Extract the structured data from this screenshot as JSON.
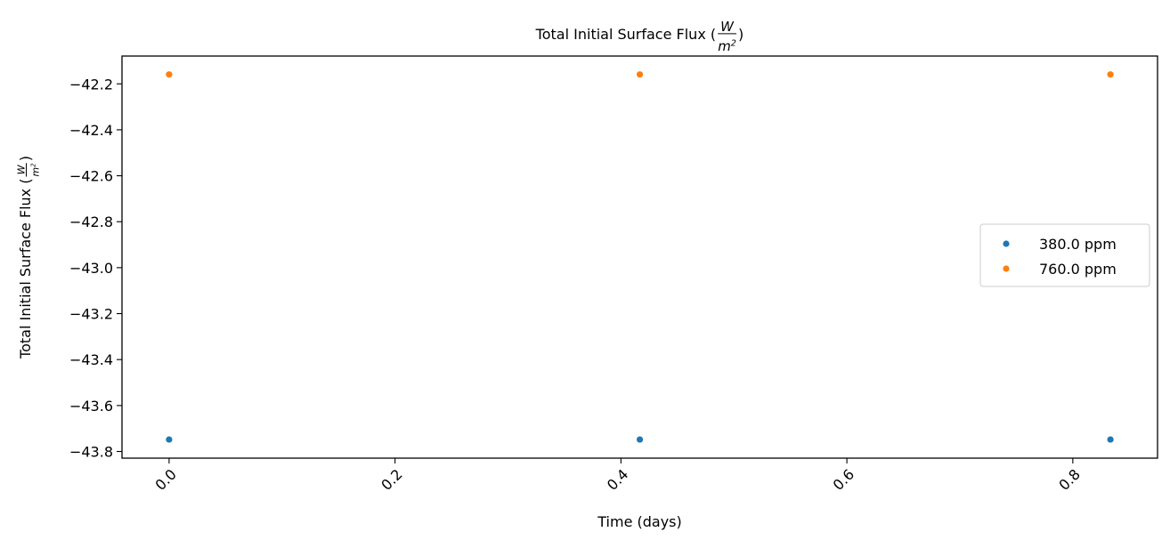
{
  "chart_data": {
    "type": "scatter",
    "title": "Total Initial Surface Flux (W/m²)",
    "title_parts": {
      "prefix": "Total Initial Surface Flux (",
      "frac_num": "W",
      "frac_den": "m",
      "frac_den_exp": "2",
      "suffix": ")"
    },
    "xlabel": "Time (days)",
    "ylabel": "Total Initial Surface Flux (W/m²)",
    "ylabel_parts": {
      "prefix": "Total Initial Surface Flux (",
      "frac_num": "W",
      "frac_den": "m",
      "frac_den_exp": "2",
      "suffix": ")"
    },
    "xlim": [
      -0.0417,
      0.875
    ],
    "ylim": [
      -43.829,
      -42.079
    ],
    "xticks": [
      0.0,
      0.2,
      0.4,
      0.6,
      0.8
    ],
    "xtick_labels": [
      "0.0",
      "0.2",
      "0.4",
      "0.6",
      "0.8"
    ],
    "yticks": [
      -42.2,
      -42.4,
      -42.6,
      -42.8,
      -43.0,
      -43.2,
      -43.4,
      -43.6,
      -43.8
    ],
    "ytick_labels": [
      "−42.2",
      "−42.4",
      "−42.6",
      "−42.8",
      "−43.0",
      "−43.2",
      "−43.4",
      "−43.6",
      "−43.8"
    ],
    "xtick_rotation": 45,
    "grid": false,
    "legend_position": "center-right",
    "series": [
      {
        "name": "380.0 ppm",
        "color": "#1f77b4",
        "x": [
          0.0,
          0.4167,
          0.8333
        ],
        "y": [
          -43.748,
          -43.748,
          -43.748
        ]
      },
      {
        "name": "760.0 ppm",
        "color": "#ff7f0e",
        "x": [
          0.0,
          0.4167,
          0.8333
        ],
        "y": [
          -42.159,
          -42.159,
          -42.159
        ]
      }
    ]
  }
}
